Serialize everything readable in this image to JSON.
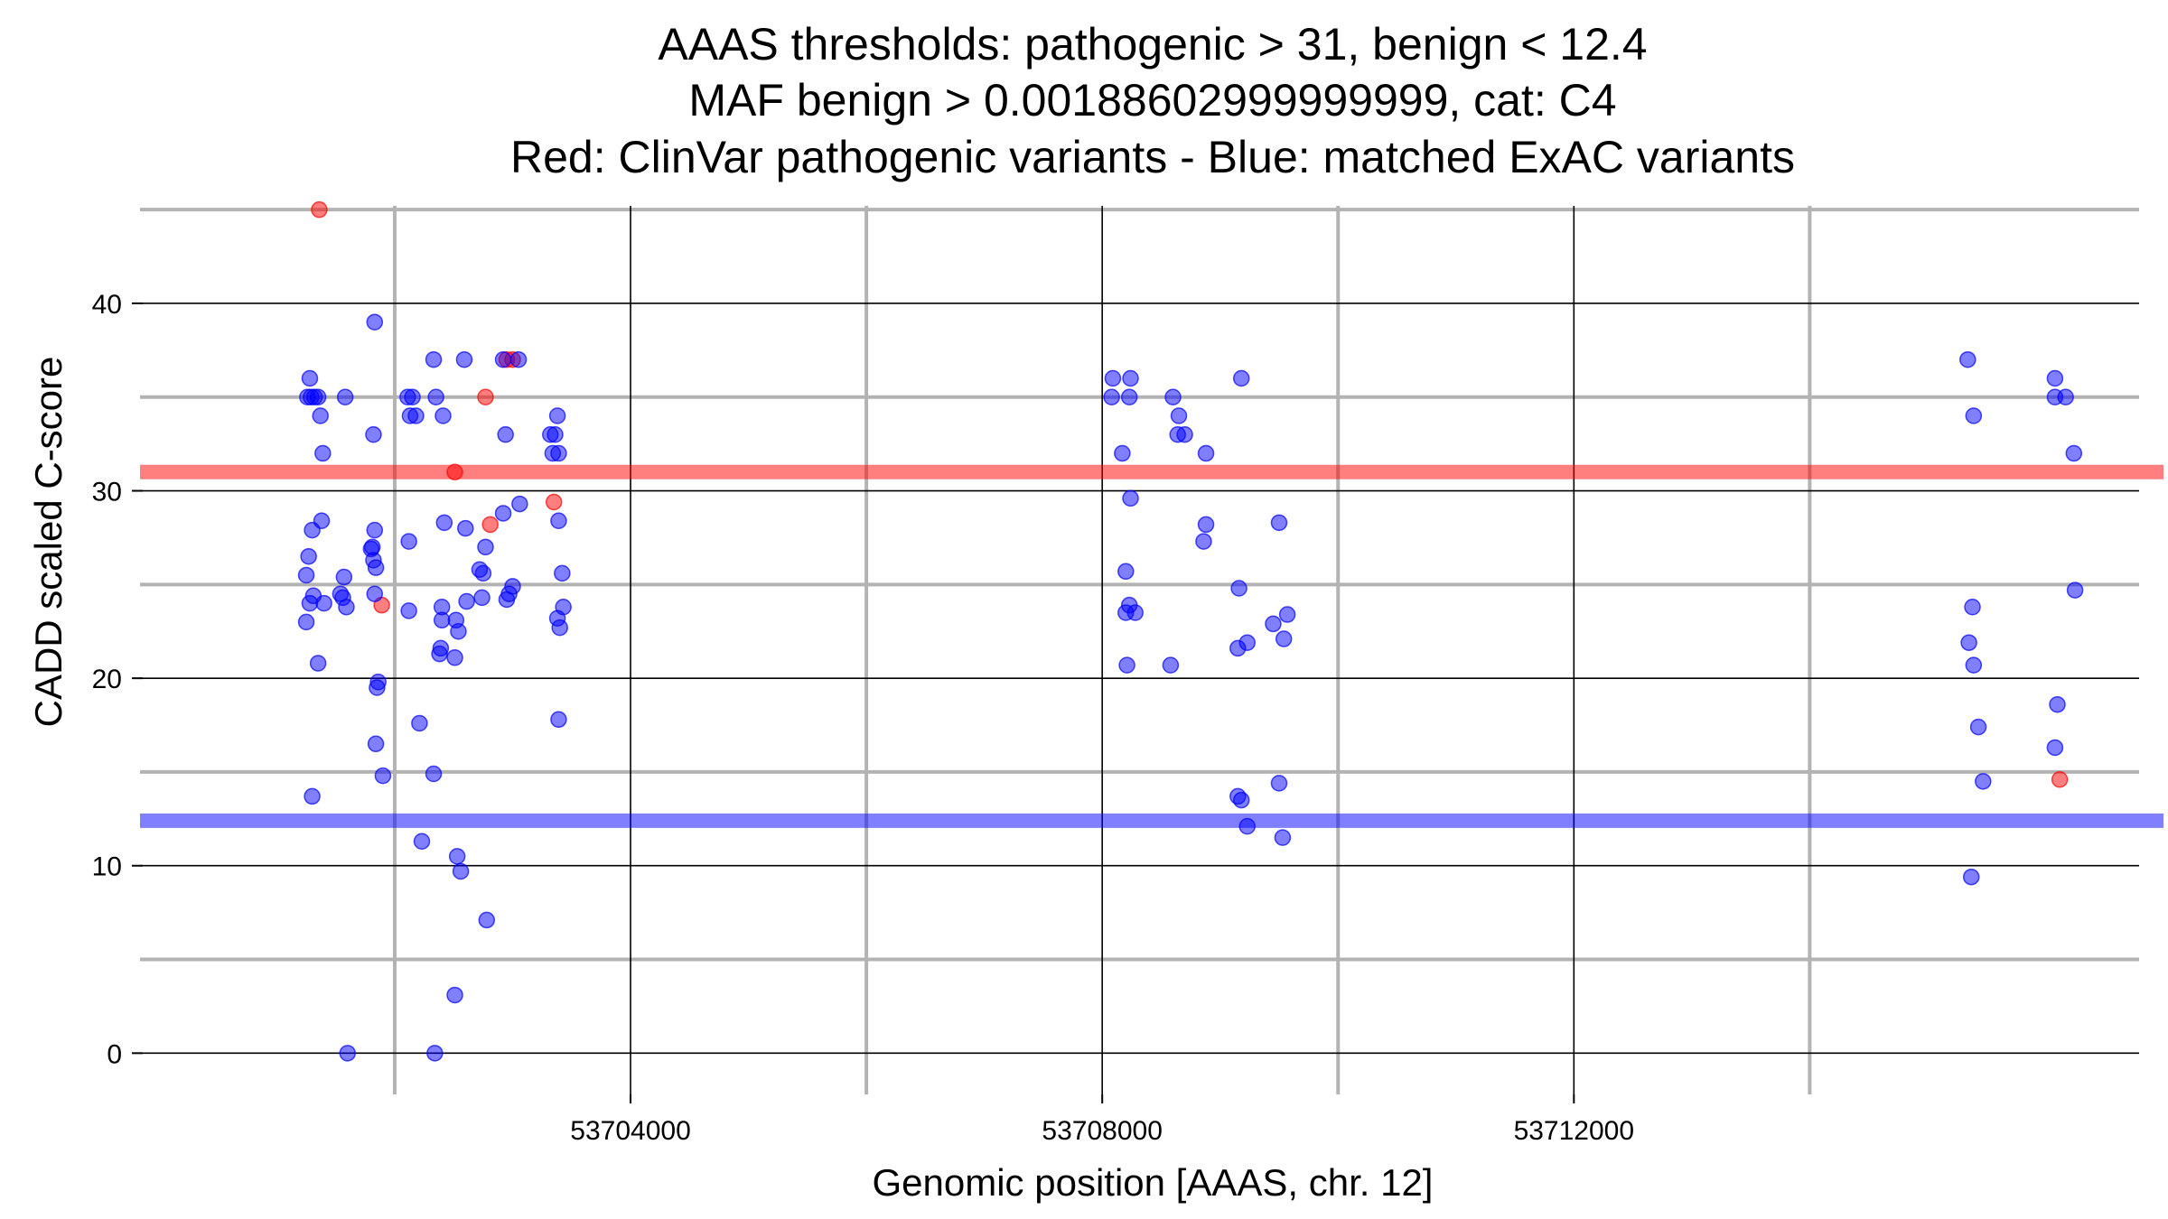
{
  "chart_data": {
    "type": "scatter",
    "title_lines": [
      "AAAS thresholds: pathogenic > 31, benign < 12.4",
      "MAF benign > 0.00188602999999999, cat: C4",
      "Red: ClinVar pathogenic variants - Blue: matched ExAC variants"
    ],
    "xlabel": "Genomic position [AAAS, chr. 12]",
    "ylabel": "CADD scaled C-score",
    "xlim": [
      53699840,
      53717000
    ],
    "ylim": [
      -2.2,
      45.2
    ],
    "x_ticks": [
      {
        "value": 53704000,
        "label": "53704000"
      },
      {
        "value": 53708000,
        "label": "53708000"
      },
      {
        "value": 53712000,
        "label": "53712000"
      }
    ],
    "x_minor_gridlines": [
      53702000,
      53706000,
      53710000,
      53714000
    ],
    "y_ticks": [
      {
        "value": 0,
        "label": "0"
      },
      {
        "value": 10,
        "label": "10"
      },
      {
        "value": 20,
        "label": "20"
      },
      {
        "value": 30,
        "label": "30"
      },
      {
        "value": 40,
        "label": "40"
      }
    ],
    "y_minor_gridlines": [
      5,
      15,
      25,
      35,
      45
    ],
    "thresholds": [
      {
        "name": "pathogenic",
        "value": 31,
        "color": "#ff0000"
      },
      {
        "name": "benign",
        "value": 12.4,
        "color": "#0000ff"
      }
    ],
    "series": [
      {
        "name": "ClinVar pathogenic variants",
        "color": "#ff0000",
        "points": [
          [
            53701360,
            45
          ],
          [
            53701890,
            23.9
          ],
          [
            53702510,
            31
          ],
          [
            53702770,
            35
          ],
          [
            53702810,
            28.2
          ],
          [
            53702950,
            37
          ],
          [
            53703000,
            37
          ],
          [
            53703350,
            29.4
          ],
          [
            53716120,
            14.6
          ]
        ]
      },
      {
        "name": "matched ExAC variants",
        "color": "#0000ff",
        "points": [
          [
            53701260,
            35
          ],
          [
            53701290,
            35
          ],
          [
            53701320,
            35
          ],
          [
            53701280,
            36
          ],
          [
            53701350,
            35
          ],
          [
            53701370,
            34
          ],
          [
            53701390,
            32
          ],
          [
            53701250,
            25.5
          ],
          [
            53701270,
            26.5
          ],
          [
            53701300,
            27.9
          ],
          [
            53701380,
            28.4
          ],
          [
            53701250,
            23
          ],
          [
            53701280,
            24
          ],
          [
            53701310,
            24.4
          ],
          [
            53701400,
            24
          ],
          [
            53701350,
            20.8
          ],
          [
            53701300,
            13.7
          ],
          [
            53701540,
            24.5
          ],
          [
            53701560,
            24.3
          ],
          [
            53701570,
            25.4
          ],
          [
            53701590,
            23.8
          ],
          [
            53701580,
            35
          ],
          [
            53701600,
            0
          ],
          [
            53701830,
            39
          ],
          [
            53701820,
            33
          ],
          [
            53701810,
            27
          ],
          [
            53701830,
            27.9
          ],
          [
            53701800,
            26.9
          ],
          [
            53701820,
            26.3
          ],
          [
            53701840,
            25.9
          ],
          [
            53701830,
            24.5
          ],
          [
            53701860,
            19.8
          ],
          [
            53701850,
            19.5
          ],
          [
            53701840,
            16.5
          ],
          [
            53701900,
            14.8
          ],
          [
            53702110,
            35
          ],
          [
            53702150,
            35
          ],
          [
            53702130,
            34
          ],
          [
            53702180,
            34
          ],
          [
            53702120,
            27.3
          ],
          [
            53702120,
            23.6
          ],
          [
            53702210,
            17.6
          ],
          [
            53702230,
            11.3
          ],
          [
            53702330,
            37
          ],
          [
            53702350,
            35
          ],
          [
            53702410,
            34
          ],
          [
            53702330,
            14.9
          ],
          [
            53702340,
            0
          ],
          [
            53702400,
            23.8
          ],
          [
            53702400,
            23.1
          ],
          [
            53702390,
            21.6
          ],
          [
            53702380,
            21.3
          ],
          [
            53702420,
            28.3
          ],
          [
            53702520,
            23.1
          ],
          [
            53702540,
            22.5
          ],
          [
            53702510,
            21.1
          ],
          [
            53702530,
            10.5
          ],
          [
            53702560,
            9.7
          ],
          [
            53702510,
            3.1
          ],
          [
            53702590,
            37
          ],
          [
            53702600,
            28
          ],
          [
            53702610,
            24.1
          ],
          [
            53702720,
            25.8
          ],
          [
            53702750,
            25.6
          ],
          [
            53702740,
            24.3
          ],
          [
            53702770,
            27
          ],
          [
            53702780,
            7.1
          ],
          [
            53702920,
            37
          ],
          [
            53702940,
            33
          ],
          [
            53702920,
            28.8
          ],
          [
            53702950,
            24.2
          ],
          [
            53702970,
            24.5
          ],
          [
            53703000,
            24.9
          ],
          [
            53703050,
            37
          ],
          [
            53703060,
            29.3
          ],
          [
            53703320,
            33
          ],
          [
            53703360,
            33
          ],
          [
            53703340,
            32
          ],
          [
            53703390,
            32
          ],
          [
            53703380,
            34
          ],
          [
            53703390,
            28.4
          ],
          [
            53703380,
            23.2
          ],
          [
            53703400,
            22.7
          ],
          [
            53703420,
            25.6
          ],
          [
            53703430,
            23.8
          ],
          [
            53703390,
            17.8
          ],
          [
            53708090,
            36
          ],
          [
            53708080,
            35
          ],
          [
            53708240,
            36
          ],
          [
            53708230,
            35
          ],
          [
            53708170,
            32
          ],
          [
            53708200,
            25.7
          ],
          [
            53708240,
            29.6
          ],
          [
            53708200,
            23.5
          ],
          [
            53708230,
            23.9
          ],
          [
            53708280,
            23.5
          ],
          [
            53708210,
            20.7
          ],
          [
            53708600,
            35
          ],
          [
            53708650,
            34
          ],
          [
            53708640,
            33
          ],
          [
            53708700,
            33
          ],
          [
            53708580,
            20.7
          ],
          [
            53708880,
            32
          ],
          [
            53708880,
            28.2
          ],
          [
            53708860,
            27.3
          ],
          [
            53709180,
            36
          ],
          [
            53709160,
            24.8
          ],
          [
            53709150,
            21.6
          ],
          [
            53709230,
            21.9
          ],
          [
            53709150,
            13.7
          ],
          [
            53709180,
            13.5
          ],
          [
            53709230,
            12.1
          ],
          [
            53709500,
            28.3
          ],
          [
            53709450,
            22.9
          ],
          [
            53709570,
            23.4
          ],
          [
            53709540,
            22.1
          ],
          [
            53709500,
            14.4
          ],
          [
            53709530,
            11.5
          ],
          [
            53715340,
            37
          ],
          [
            53715390,
            34
          ],
          [
            53715380,
            23.8
          ],
          [
            53715350,
            21.9
          ],
          [
            53715390,
            20.7
          ],
          [
            53715430,
            17.4
          ],
          [
            53715470,
            14.5
          ],
          [
            53715370,
            9.4
          ],
          [
            53716080,
            36
          ],
          [
            53716080,
            35
          ],
          [
            53716170,
            35
          ],
          [
            53716240,
            32
          ],
          [
            53716250,
            24.7
          ],
          [
            53716100,
            18.6
          ],
          [
            53716080,
            16.3
          ]
        ]
      }
    ]
  }
}
